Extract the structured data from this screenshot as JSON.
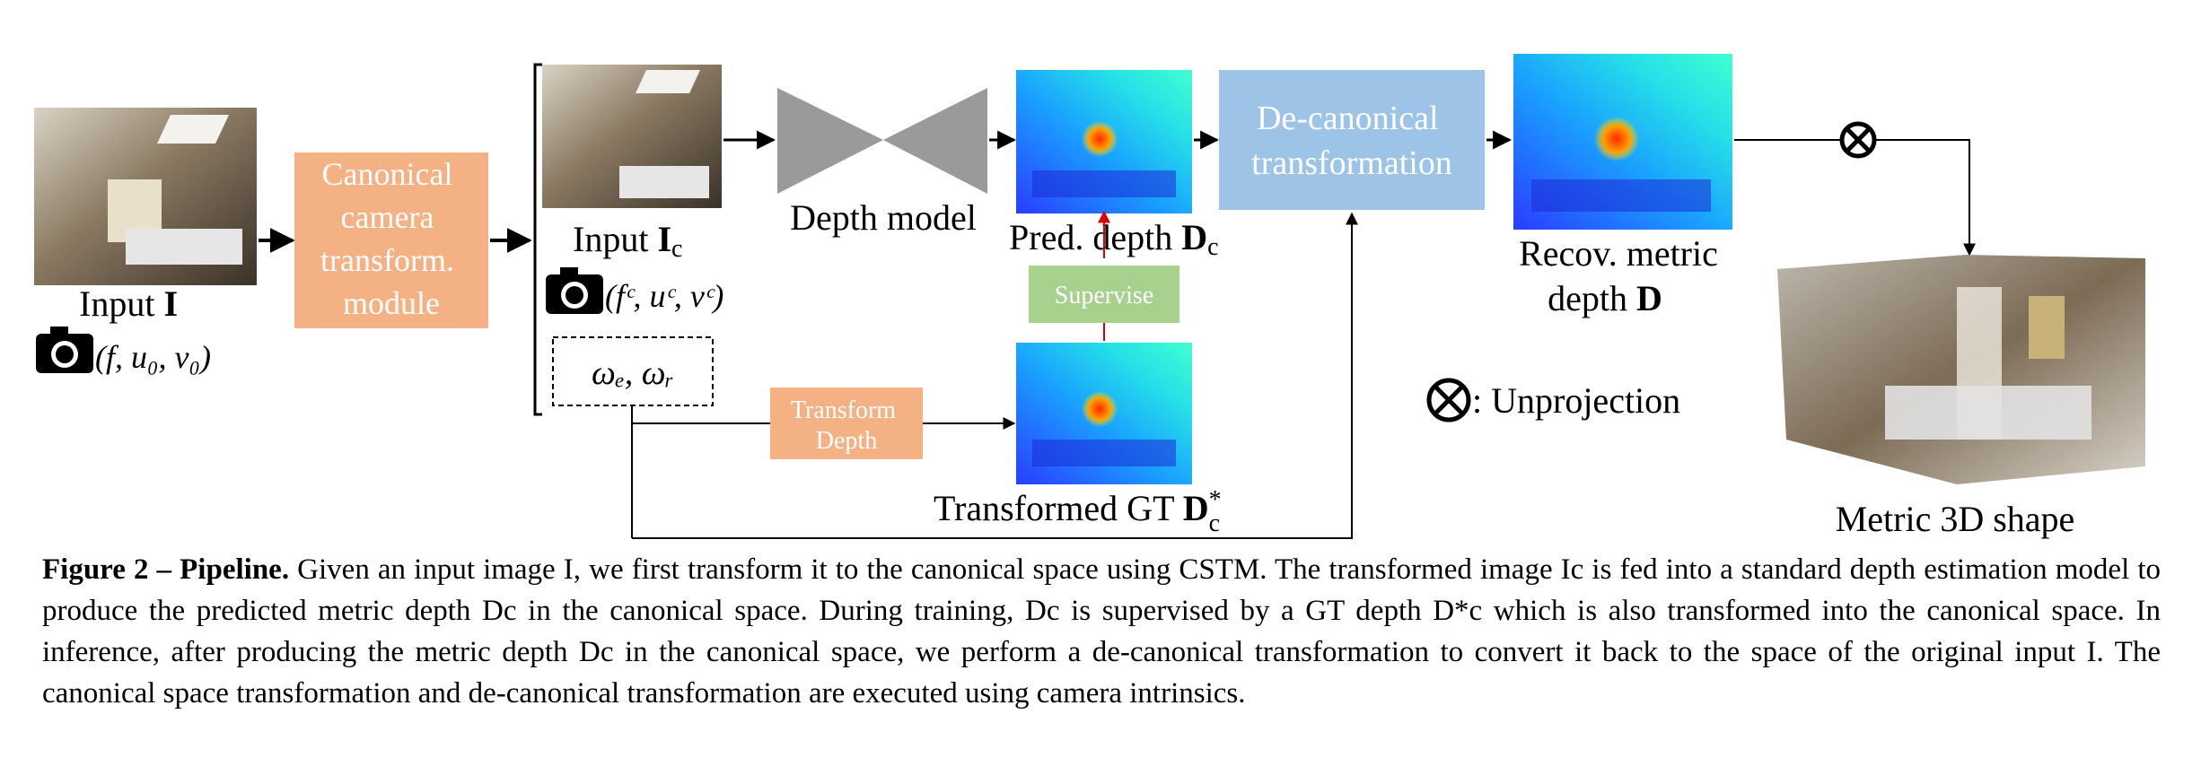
{
  "diagram": {
    "input_label": "Input ",
    "input_bold": "I",
    "input_params": "(f, u₀, v₀)",
    "cstm_lines": [
      "Canonical",
      "camera",
      "transform.",
      "module"
    ],
    "input_c_label": "Input ",
    "input_c_bold": "I",
    "input_c_sub": "c",
    "input_c_params": "(fᶜ, uᶜ, vᶜ)",
    "omega": "ωₑ, ωᵣ",
    "depth_model": "Depth model",
    "pred_depth": "Pred. depth ",
    "pred_depth_bold": "D",
    "pred_depth_sub": "c",
    "supervise": "Supervise",
    "transform_depth_lines": [
      "Transform",
      "Depth"
    ],
    "transformed_gt": "Transformed GT ",
    "transformed_gt_bold": "D",
    "transformed_gt_sup": "*",
    "transformed_gt_sub": "c",
    "decanonical_lines": [
      "De-canonical",
      "transformation"
    ],
    "recov_lines": [
      "Recov. metric",
      "depth "
    ],
    "recov_bold": "D",
    "unprojection_symbol": "⊗",
    "unprojection_label": ": Unprojection",
    "metric_3d": "Metric 3D shape"
  },
  "caption": {
    "figure_label": "Figure 2 – Pipeline.",
    "text": " Given an input image I, we first transform it to the canonical space using CSTM. The transformed image Ic is fed into a standard depth estimation model to produce the predicted metric depth Dc in the canonical space. During training, Dc is supervised by a GT depth D*c which is also transformed into the canonical space. In inference, after producing the metric depth Dc in the canonical space, we perform a de-canonical transformation to convert it back to the space of the original input I. The canonical space transformation and de-canonical transformation are executed using camera intrinsics."
  },
  "colors": {
    "cstm_box": "#f4b183",
    "decanonical_box": "#9dc3e6",
    "supervise_box": "#a9d18e",
    "transform_box": "#f4b183",
    "depth_model": "#9a9a9a",
    "supervise_arrow": "#e00000"
  }
}
